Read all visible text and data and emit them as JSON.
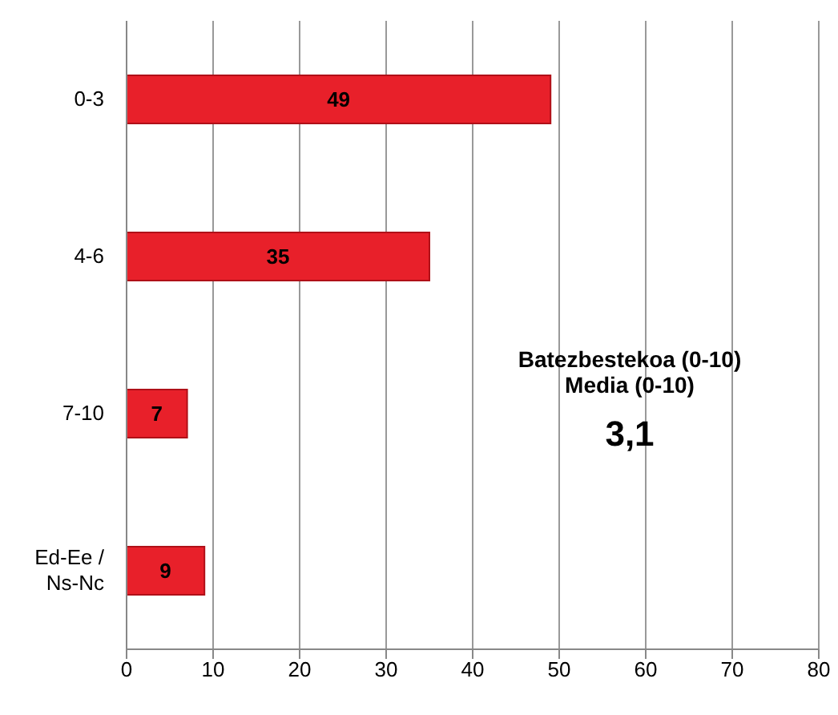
{
  "chart_data": {
    "type": "bar",
    "orientation": "horizontal",
    "categories": [
      "0-3",
      "4-6",
      "7-10",
      "Ed-Ee / Ns-Nc"
    ],
    "values": [
      49,
      35,
      7,
      9
    ],
    "color": "#e8202a",
    "data_labels": true,
    "xlim": [
      0,
      80
    ],
    "xticks": [
      0,
      10,
      20,
      30,
      40,
      50,
      60,
      70,
      80
    ],
    "grid": "x",
    "annotations": [
      "Batezbestekoa (0-10)",
      "Media (0-10)",
      "3,1"
    ]
  }
}
